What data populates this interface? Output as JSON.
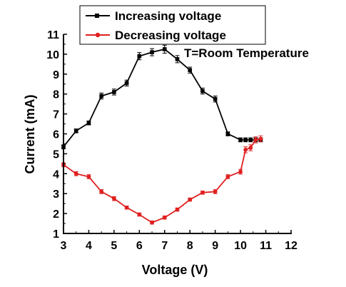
{
  "chart_data": {
    "type": "line",
    "xlabel": "Voltage (V)",
    "ylabel": "Current (mA)",
    "xlim": [
      3,
      12
    ],
    "ylim": [
      1,
      11
    ],
    "xticks": [
      3,
      4,
      5,
      6,
      7,
      8,
      9,
      10,
      11,
      12
    ],
    "yticks": [
      1,
      2,
      3,
      4,
      5,
      6,
      7,
      8,
      9,
      10,
      11
    ],
    "annotation": "T=Room Temperature",
    "legend_position": "top-left",
    "series": [
      {
        "name": "Increasing voltage",
        "color": "#000000",
        "marker": "square",
        "x": [
          3.0,
          3.5,
          4.0,
          4.5,
          5.0,
          5.5,
          6.0,
          6.5,
          7.0,
          7.5,
          8.0,
          8.5,
          9.0,
          9.5,
          10.0,
          10.2,
          10.4,
          10.6,
          10.8
        ],
        "y": [
          5.35,
          6.15,
          6.55,
          7.9,
          8.1,
          8.55,
          9.9,
          10.1,
          10.25,
          9.75,
          9.2,
          8.15,
          7.75,
          6.0,
          5.7,
          5.7,
          5.7,
          5.7,
          5.7
        ],
        "error": [
          0.1,
          0.1,
          0.1,
          0.15,
          0.15,
          0.15,
          0.18,
          0.18,
          0.2,
          0.18,
          0.15,
          0.15,
          0.15,
          0.1,
          0.1,
          0.1,
          0.1,
          0.1,
          0.1
        ]
      },
      {
        "name": "Decreasing voltage",
        "color": "#e02020",
        "marker": "circle",
        "x": [
          3.0,
          3.5,
          4.0,
          4.5,
          5.0,
          5.5,
          6.0,
          6.5,
          7.0,
          7.5,
          8.0,
          8.5,
          9.0,
          9.5,
          10.0,
          10.2,
          10.4,
          10.6,
          10.8
        ],
        "y": [
          4.45,
          4.0,
          3.85,
          3.1,
          2.75,
          2.3,
          1.95,
          1.55,
          1.8,
          2.2,
          2.7,
          3.05,
          3.1,
          3.85,
          4.1,
          5.2,
          5.3,
          5.7,
          5.75
        ],
        "error": [
          0.1,
          0.1,
          0.1,
          0.1,
          0.1,
          0.08,
          0.08,
          0.08,
          0.08,
          0.08,
          0.08,
          0.08,
          0.1,
          0.1,
          0.12,
          0.15,
          0.15,
          0.15,
          0.15
        ]
      }
    ]
  }
}
